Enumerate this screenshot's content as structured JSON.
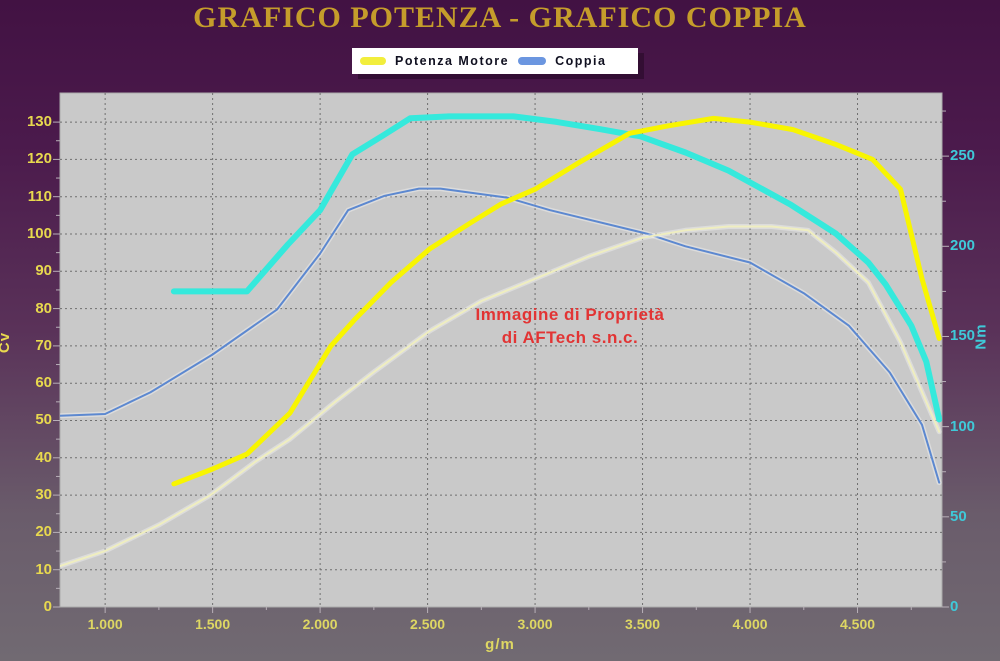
{
  "window": {
    "title": "GRAFICO POTENZA - GRAFICO COPPIA"
  },
  "legend": {
    "items": [
      {
        "label": "Potenza Motore",
        "color": "#f2ee3c"
      },
      {
        "label": "Coppia",
        "color": "#6b96e0"
      }
    ]
  },
  "watermark": {
    "line1": "Immagine di Proprietà",
    "line2": "di AFTech s.n.c."
  },
  "chart_data": {
    "type": "line",
    "title": "GRAFICO POTENZA - GRAFICO COPPIA",
    "xlabel": "g/m",
    "x_range": [
      790,
      4893
    ],
    "x_ticks": {
      "values": [
        1000,
        1500,
        2000,
        2500,
        3000,
        3500,
        4000,
        4500
      ],
      "labels": [
        "1.000",
        "1.500",
        "2.000",
        "2.500",
        "3.000",
        "3.500",
        "4.000",
        "4.500"
      ]
    },
    "y_left": {
      "label": "Cv",
      "range": [
        0,
        137.8
      ],
      "tick_step": 10,
      "minor_step": 5,
      "ticks": [
        0,
        10,
        20,
        30,
        40,
        50,
        60,
        70,
        80,
        90,
        100,
        110,
        120,
        130
      ],
      "color": "#e8d94e"
    },
    "y_right": {
      "label": "Nm",
      "range": [
        0,
        285
      ],
      "tick_step": 50,
      "minor_step": 25,
      "ticks": [
        0,
        50,
        100,
        150,
        200,
        250
      ],
      "color": "#3fc9d8"
    },
    "grid": {
      "h_step": 10,
      "v_step": 500,
      "color": "#6f6f6f",
      "style": "dashed"
    },
    "plot_background": "#c9c9c9",
    "legend_position": "top-center",
    "series": [
      {
        "id": "coppia-thin-stock",
        "legend_label": null,
        "axis": "right",
        "color": "#5c88d0",
        "width": 2,
        "points": [
          [
            790,
            106
          ],
          [
            1000,
            107
          ],
          [
            1210,
            119
          ],
          [
            1500,
            140
          ],
          [
            1800,
            165
          ],
          [
            2000,
            196
          ],
          [
            2130,
            220
          ],
          [
            2300,
            228
          ],
          [
            2460,
            232
          ],
          [
            2560,
            232
          ],
          [
            2870,
            227
          ],
          [
            3070,
            220
          ],
          [
            3520,
            207
          ],
          [
            3700,
            200
          ],
          [
            4000,
            191
          ],
          [
            4250,
            174
          ],
          [
            4460,
            156
          ],
          [
            4650,
            130
          ],
          [
            4800,
            101
          ],
          [
            4880,
            69
          ]
        ]
      },
      {
        "id": "potenza-thin-stock",
        "legend_label": null,
        "axis": "left",
        "color": "#efeec0",
        "width": 2,
        "points": [
          [
            790,
            11
          ],
          [
            1000,
            15
          ],
          [
            1250,
            22
          ],
          [
            1490,
            30
          ],
          [
            1700,
            39
          ],
          [
            1860,
            45
          ],
          [
            2070,
            55
          ],
          [
            2250,
            63
          ],
          [
            2510,
            74
          ],
          [
            2750,
            82
          ],
          [
            3000,
            88
          ],
          [
            3250,
            94
          ],
          [
            3500,
            99
          ],
          [
            3700,
            101
          ],
          [
            3900,
            102
          ],
          [
            4100,
            102
          ],
          [
            4270,
            101
          ],
          [
            4400,
            95
          ],
          [
            4550,
            87
          ],
          [
            4700,
            71
          ],
          [
            4880,
            47
          ]
        ]
      },
      {
        "id": "coppia-thick",
        "legend_label": "Coppia",
        "axis": "right",
        "color": "#35e9dc",
        "width": 6,
        "points": [
          [
            1320,
            175
          ],
          [
            1660,
            175
          ],
          [
            1850,
            201
          ],
          [
            2000,
            220
          ],
          [
            2150,
            251
          ],
          [
            2300,
            262
          ],
          [
            2420,
            271
          ],
          [
            2600,
            272
          ],
          [
            2900,
            272
          ],
          [
            3100,
            269
          ],
          [
            3300,
            265
          ],
          [
            3490,
            261
          ],
          [
            3700,
            252
          ],
          [
            3900,
            242
          ],
          [
            4190,
            223
          ],
          [
            4400,
            207
          ],
          [
            4550,
            191
          ],
          [
            4630,
            179
          ],
          [
            4750,
            156
          ],
          [
            4820,
            136
          ],
          [
            4880,
            104
          ]
        ]
      },
      {
        "id": "potenza-motore-thick",
        "legend_label": "Potenza Motore",
        "axis": "left",
        "color": "#f8f500",
        "width": 5,
        "points": [
          [
            1320,
            33
          ],
          [
            1500,
            37
          ],
          [
            1660,
            41
          ],
          [
            1860,
            52
          ],
          [
            2050,
            70
          ],
          [
            2160,
            77
          ],
          [
            2330,
            87
          ],
          [
            2510,
            96
          ],
          [
            2700,
            103
          ],
          [
            2840,
            108
          ],
          [
            3000,
            112
          ],
          [
            3200,
            119
          ],
          [
            3440,
            127
          ],
          [
            3620,
            129
          ],
          [
            3830,
            131
          ],
          [
            4000,
            130
          ],
          [
            4200,
            128
          ],
          [
            4400,
            124
          ],
          [
            4570,
            120
          ],
          [
            4700,
            112
          ],
          [
            4800,
            88
          ],
          [
            4880,
            72
          ]
        ]
      }
    ],
    "annotations": [
      "Immagine di Proprietà",
      "di AFTech s.n.c."
    ]
  }
}
